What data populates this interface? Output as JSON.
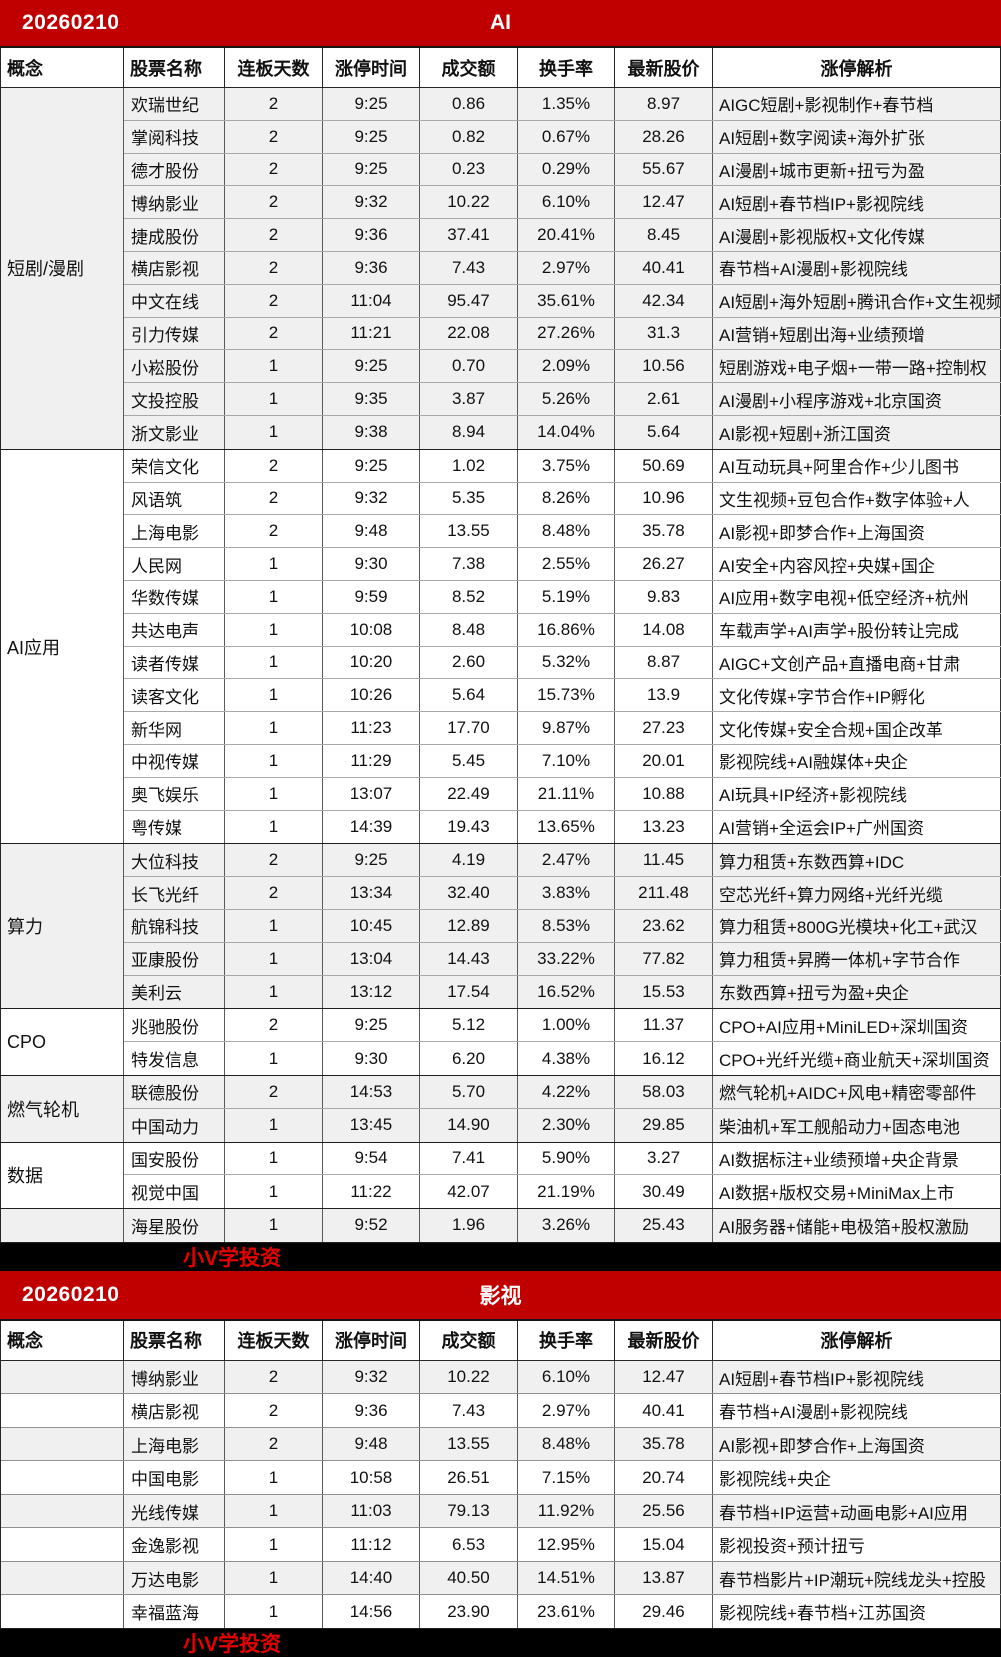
{
  "brand": "小V学投资",
  "columns": [
    "概念",
    "股票名称",
    "连板天数",
    "涨停时间",
    "成交额",
    "换手率",
    "最新股价",
    "涨停解析"
  ],
  "tables": [
    {
      "date": "20260210",
      "title": "AI",
      "groups": [
        {
          "concept": "短剧/漫剧",
          "rows": [
            [
              "欢瑞世纪",
              "2",
              "9:25",
              "0.86",
              "1.35%",
              "8.97",
              "AIGC短剧+影视制作+春节档"
            ],
            [
              "掌阅科技",
              "2",
              "9:25",
              "0.82",
              "0.67%",
              "28.26",
              "AI短剧+数字阅读+海外扩张"
            ],
            [
              "德才股份",
              "2",
              "9:25",
              "0.23",
              "0.29%",
              "55.67",
              "AI漫剧+城市更新+扭亏为盈"
            ],
            [
              "博纳影业",
              "2",
              "9:32",
              "10.22",
              "6.10%",
              "12.47",
              "AI短剧+春节档IP+影视院线"
            ],
            [
              "捷成股份",
              "2",
              "9:36",
              "37.41",
              "20.41%",
              "8.45",
              "AI漫剧+影视版权+文化传媒"
            ],
            [
              "横店影视",
              "2",
              "9:36",
              "7.43",
              "2.97%",
              "40.41",
              "春节档+AI漫剧+影视院线"
            ],
            [
              "中文在线",
              "2",
              "11:04",
              "95.47",
              "35.61%",
              "42.34",
              "AI短剧+海外短剧+腾讯合作+文生视频"
            ],
            [
              "引力传媒",
              "2",
              "11:21",
              "22.08",
              "27.26%",
              "31.3",
              "AI营销+短剧出海+业绩预增"
            ],
            [
              "小崧股份",
              "1",
              "9:25",
              "0.70",
              "2.09%",
              "10.56",
              "短剧游戏+电子烟+一带一路+控制权"
            ],
            [
              "文投控股",
              "1",
              "9:35",
              "3.87",
              "5.26%",
              "2.61",
              "AI漫剧+小程序游戏+北京国资"
            ],
            [
              "浙文影业",
              "1",
              "9:38",
              "8.94",
              "14.04%",
              "5.64",
              "AI影视+短剧+浙江国资"
            ]
          ]
        },
        {
          "concept": "AI应用",
          "rows": [
            [
              "荣信文化",
              "2",
              "9:25",
              "1.02",
              "3.75%",
              "50.69",
              "AI互动玩具+阿里合作+少儿图书"
            ],
            [
              "风语筑",
              "2",
              "9:32",
              "5.35",
              "8.26%",
              "10.96",
              "文生视频+豆包合作+数字体验+人"
            ],
            [
              "上海电影",
              "2",
              "9:48",
              "13.55",
              "8.48%",
              "35.78",
              "AI影视+即梦合作+上海国资"
            ],
            [
              "人民网",
              "1",
              "9:30",
              "7.38",
              "2.55%",
              "26.27",
              "AI安全+内容风控+央媒+国企"
            ],
            [
              "华数传媒",
              "1",
              "9:59",
              "8.52",
              "5.19%",
              "9.83",
              "AI应用+数字电视+低空经济+杭州"
            ],
            [
              "共达电声",
              "1",
              "10:08",
              "8.48",
              "16.86%",
              "14.08",
              "车载声学+AI声学+股份转让完成"
            ],
            [
              "读者传媒",
              "1",
              "10:20",
              "2.60",
              "5.32%",
              "8.87",
              "AIGC+文创产品+直播电商+甘肃"
            ],
            [
              "读客文化",
              "1",
              "10:26",
              "5.64",
              "15.73%",
              "13.9",
              "文化传媒+字节合作+IP孵化"
            ],
            [
              "新华网",
              "1",
              "11:23",
              "17.70",
              "9.87%",
              "27.23",
              "文化传媒+安全合规+国企改革"
            ],
            [
              "中视传媒",
              "1",
              "11:29",
              "5.45",
              "7.10%",
              "20.01",
              "影视院线+AI融媒体+央企"
            ],
            [
              "奥飞娱乐",
              "1",
              "13:07",
              "22.49",
              "21.11%",
              "10.88",
              "AI玩具+IP经济+影视院线"
            ],
            [
              "粤传媒",
              "1",
              "14:39",
              "19.43",
              "13.65%",
              "13.23",
              "AI营销+全运会IP+广州国资"
            ]
          ]
        },
        {
          "concept": "算力",
          "rows": [
            [
              "大位科技",
              "2",
              "9:25",
              "4.19",
              "2.47%",
              "11.45",
              "算力租赁+东数西算+IDC"
            ],
            [
              "长飞光纤",
              "2",
              "13:34",
              "32.40",
              "3.83%",
              "211.48",
              "空芯光纤+算力网络+光纤光缆"
            ],
            [
              "航锦科技",
              "1",
              "10:45",
              "12.89",
              "8.53%",
              "23.62",
              "算力租赁+800G光模块+化工+武汉"
            ],
            [
              "亚康股份",
              "1",
              "13:04",
              "14.43",
              "33.22%",
              "77.82",
              "算力租赁+昇腾一体机+字节合作"
            ],
            [
              "美利云",
              "1",
              "13:12",
              "17.54",
              "16.52%",
              "15.53",
              "东数西算+扭亏为盈+央企"
            ]
          ]
        },
        {
          "concept": "CPO",
          "rows": [
            [
              "兆驰股份",
              "2",
              "9:25",
              "5.12",
              "1.00%",
              "11.37",
              "CPO+AI应用+MiniLED+深圳国资"
            ],
            [
              "特发信息",
              "1",
              "9:30",
              "6.20",
              "4.38%",
              "16.12",
              "CPO+光纤光缆+商业航天+深圳国资"
            ]
          ]
        },
        {
          "concept": "燃气轮机",
          "rows": [
            [
              "联德股份",
              "2",
              "14:53",
              "5.70",
              "4.22%",
              "58.03",
              "燃气轮机+AIDC+风电+精密零部件"
            ],
            [
              "中国动力",
              "1",
              "13:45",
              "14.90",
              "2.30%",
              "29.85",
              "柴油机+军工舰船动力+固态电池"
            ]
          ]
        },
        {
          "concept": "数据",
          "rows": [
            [
              "国安股份",
              "1",
              "9:54",
              "7.41",
              "5.90%",
              "3.27",
              "AI数据标注+业绩预增+央企背景"
            ],
            [
              "视觉中国",
              "1",
              "11:22",
              "42.07",
              "21.19%",
              "30.49",
              "AI数据+版权交易+MiniMax上市"
            ]
          ]
        },
        {
          "concept": "",
          "rows": [
            [
              "海星股份",
              "1",
              "9:52",
              "1.96",
              "3.26%",
              "25.43",
              "AI服务器+储能+电极箔+股权激励"
            ]
          ]
        }
      ]
    },
    {
      "date": "20260210",
      "title": "影视",
      "groups": [
        {
          "concept": "",
          "rows": [
            [
              "博纳影业",
              "2",
              "9:32",
              "10.22",
              "6.10%",
              "12.47",
              "AI短剧+春节档IP+影视院线"
            ]
          ]
        },
        {
          "concept": "",
          "rows": [
            [
              "横店影视",
              "2",
              "9:36",
              "7.43",
              "2.97%",
              "40.41",
              "春节档+AI漫剧+影视院线"
            ]
          ]
        },
        {
          "concept": "",
          "rows": [
            [
              "上海电影",
              "2",
              "9:48",
              "13.55",
              "8.48%",
              "35.78",
              "AI影视+即梦合作+上海国资"
            ]
          ]
        },
        {
          "concept": "",
          "rows": [
            [
              "中国电影",
              "1",
              "10:58",
              "26.51",
              "7.15%",
              "20.74",
              "影视院线+央企"
            ]
          ]
        },
        {
          "concept": "",
          "rows": [
            [
              "光线传媒",
              "1",
              "11:03",
              "79.13",
              "11.92%",
              "25.56",
              "春节档+IP运营+动画电影+AI应用"
            ]
          ]
        },
        {
          "concept": "",
          "rows": [
            [
              "金逸影视",
              "1",
              "11:12",
              "6.53",
              "12.95%",
              "15.04",
              "影视投资+预计扭亏"
            ]
          ]
        },
        {
          "concept": "",
          "rows": [
            [
              "万达电影",
              "1",
              "14:40",
              "40.50",
              "14.51%",
              "13.87",
              "春节档影片+IP潮玩+院线龙头+控股"
            ]
          ]
        },
        {
          "concept": "",
          "rows": [
            [
              "幸福蓝海",
              "1",
              "14:56",
              "23.90",
              "23.61%",
              "29.46",
              "影视院线+春节档+江苏国资"
            ]
          ]
        }
      ]
    }
  ]
}
